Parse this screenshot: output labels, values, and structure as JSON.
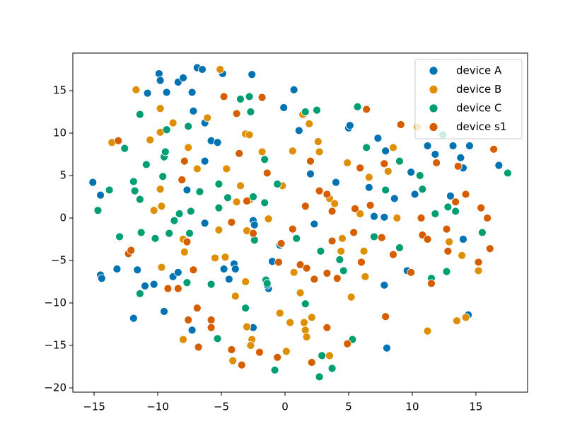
{
  "chart_data": {
    "type": "scatter",
    "xlim": [
      -16.67,
      19.06
    ],
    "ylim": [
      -20.5,
      19.42
    ],
    "xticks": [
      {
        "value": -15,
        "label": "−15"
      },
      {
        "value": -10,
        "label": "−10"
      },
      {
        "value": -5,
        "label": "−5"
      },
      0,
      5,
      10,
      15
    ],
    "yticks": [
      {
        "value": -20,
        "label": "−20"
      },
      {
        "value": -15,
        "label": "−15"
      },
      {
        "value": -10,
        "label": "−10"
      },
      {
        "value": -5,
        "label": "−5"
      },
      0,
      5,
      10,
      15
    ],
    "grid": false,
    "legend": "upper right",
    "series": [
      {
        "name": "device A",
        "color": "#0173b2",
        "x": [
          -15.1,
          -14.5,
          -14.5,
          -14.4,
          -13.2,
          -11.9,
          -11.6,
          -11,
          -10.3,
          -9.9,
          -9.8,
          -10.8,
          -9.3,
          -8.4,
          -8,
          -7.3,
          -6.9,
          -6.5,
          -7.2,
          -6.3,
          -5.8,
          -5.3,
          -6.3,
          -7.7,
          -6.3,
          -9.5,
          -8.8,
          -8.4,
          -7.3,
          -4.8,
          -4,
          -3.9,
          -4.4,
          -4.9,
          -2.6,
          -2.5,
          -2.4,
          -1.3,
          -1.4,
          -1,
          -2.5,
          -0.4,
          -0.1,
          0.7,
          1.1,
          2,
          2.3,
          4,
          5,
          5.1,
          6.6,
          7,
          7.3,
          7.9,
          7.8,
          7.8,
          8,
          8.6,
          9.9,
          10.2,
          9.6,
          11.2,
          11.8,
          13,
          13.2,
          13.8,
          14,
          14.5,
          14,
          14.4,
          16.8
        ],
        "y": [
          4.2,
          2.7,
          -6.7,
          -7.1,
          -6,
          -11.8,
          -6.1,
          -8,
          -7.8,
          17,
          16.2,
          14.7,
          14.8,
          16,
          16.5,
          14.8,
          17.7,
          17.5,
          12.6,
          11.2,
          9.1,
          8.9,
          6.7,
          3.3,
          -0.6,
          -11,
          -6.9,
          -6.4,
          -13.2,
          -6,
          -5.4,
          -6,
          -7.2,
          17,
          16.9,
          -0.3,
          -0.8,
          -8.3,
          -7.9,
          -5.1,
          -12.9,
          -3.2,
          13,
          15.1,
          10.3,
          5.2,
          -0.7,
          4.2,
          10.6,
          10.9,
          3.6,
          0.2,
          9.4,
          7.9,
          0.1,
          -7.9,
          -15.3,
          2.3,
          5.4,
          2.8,
          -6.2,
          8.5,
          7.5,
          2.6,
          8.5,
          7.1,
          5.9,
          8.5,
          -2.5,
          -11.4,
          6.2
        ]
      },
      {
        "name": "device B",
        "color": "#de8f05",
        "x": [
          -11.7,
          -13.6,
          -9.8,
          -9.8,
          -8.8,
          -10.6,
          -7.6,
          -6.1,
          -6.9,
          -9.8,
          -9.7,
          -10.3,
          -8,
          -7.9,
          -9.7,
          -8,
          -5.5,
          -4.7,
          -5.2,
          -4.6,
          -5.1,
          -3.1,
          -2.8,
          -1.8,
          -3.5,
          -3.8,
          -3,
          -2.8,
          -1.3,
          -3.1,
          -3.9,
          -3,
          -2.6,
          -2.7,
          -4.1,
          -0.2,
          0.6,
          -0.4,
          0.4,
          0.1,
          -0.6,
          0.7,
          1.2,
          1.5,
          1.6,
          1.7,
          2.1,
          1.4,
          1.9,
          2.6,
          2.7,
          3.5,
          3.9,
          4.5,
          4.4,
          4.9,
          5.2,
          3.5,
          5.9,
          6.2,
          6.3,
          6.6,
          8.1,
          8.5,
          8.8,
          10.4,
          11.2,
          12.9,
          13.9,
          13.5,
          14.2,
          15.2
        ],
        "y": [
          15.1,
          8.9,
          12.9,
          10.1,
          11.2,
          9.2,
          8.3,
          11.8,
          5.8,
          3.4,
          1.4,
          0.9,
          -2.5,
          -4,
          -5.8,
          -14.3,
          -4.7,
          -4.6,
          -1.4,
          5.8,
          17.5,
          9.9,
          9.8,
          7.8,
          3.8,
          1.9,
          -1.5,
          2.1,
          -0.1,
          -7.5,
          -9.2,
          -12.8,
          -14.3,
          -15,
          -16.8,
          3.8,
          7.9,
          -11.2,
          -12.3,
          -15.7,
          -16.4,
          -6.4,
          -8.8,
          -12.3,
          -13.2,
          -14,
          -11.7,
          12.2,
          11.1,
          9,
          7.8,
          2.3,
          1.7,
          -2.4,
          -3.9,
          6.5,
          -9.3,
          -16.2,
          0.5,
          -3.9,
          -6.9,
          4.8,
          5.5,
          8.3,
          0,
          10.7,
          -13.3,
          -2.8,
          -4.4,
          -12.1,
          -11.7,
          -6.2
        ]
      },
      {
        "name": "device C",
        "color": "#029e73",
        "x": [
          -14.7,
          -13.8,
          -12.6,
          -13,
          -11.9,
          -11.8,
          -11.4,
          -11.4,
          -11.3,
          -11.4,
          -10.9,
          -10.2,
          -9.5,
          -9.4,
          -9.6,
          -9.3,
          -9.1,
          -8.7,
          -8.3,
          -7.6,
          -7.4,
          -7.5,
          -7.7,
          -6.7,
          -5.8,
          -5.3,
          -5.2,
          -5.2,
          -4.5,
          -3.5,
          -2.8,
          -2.7,
          -2.5,
          -2.4,
          -1.6,
          -1.6,
          -3.1,
          -1.5,
          -1.4,
          -0.8,
          -0.6,
          0.9,
          1.6,
          1.6,
          2.5,
          2.7,
          2.9,
          3.7,
          2.8,
          4.3,
          4.6,
          5.3,
          5.7,
          6.4,
          7,
          7.9,
          9,
          9,
          10.6,
          10.8,
          11.5,
          11.8,
          12.4,
          12.8,
          12.7,
          13.4,
          15.5,
          17.5
        ],
        "y": [
          0.9,
          3.3,
          8.2,
          -2.2,
          4.3,
          3.2,
          2.2,
          12.2,
          -1.7,
          -8.9,
          6.3,
          -2.4,
          7.2,
          7.8,
          4.9,
          10.4,
          -1.8,
          -0.3,
          0.5,
          10.8,
          0.8,
          -1.8,
          -7.6,
          3.1,
          -7.8,
          -14.2,
          4,
          1.2,
          2.4,
          14,
          14.3,
          12.5,
          2.5,
          -2.6,
          1.8,
          6.9,
          -10.6,
          -7.3,
          -7.7,
          -17.9,
          4,
          -2.4,
          12.5,
          -10.1,
          12.7,
          -18.7,
          -16.2,
          -17.7,
          -3.9,
          -4.9,
          -6.2,
          -14.3,
          13.1,
          8.3,
          -2.2,
          3.3,
          6.7,
          -3.5,
          5,
          3.4,
          -7.1,
          0.5,
          9.8,
          1.3,
          -6.3,
          0.8,
          -1.7,
          5.3
        ]
      },
      {
        "name": "device s1",
        "color": "#d55e00",
        "x": [
          -13.1,
          -12.3,
          -12.1,
          -9.2,
          -8.4,
          -8.1,
          -7.9,
          -7.7,
          -7.6,
          -7.2,
          -6.9,
          -6.8,
          -5.8,
          -5.8,
          -4.8,
          -4.2,
          -3.8,
          -3.6,
          -3.4,
          -3,
          -4.2,
          -2.5,
          -1.8,
          -2,
          -1.4,
          -0.5,
          -0.3,
          0.6,
          -0.6,
          1.2,
          1.6,
          1.7,
          2,
          2.1,
          2.3,
          2.7,
          3.3,
          3.3,
          3.3,
          3.7,
          3.7,
          4.1,
          4.9,
          5.4,
          5.5,
          5.9,
          6,
          6.4,
          6.7,
          7.6,
          7.8,
          7.9,
          8.5,
          9.1,
          9.9,
          10.7,
          10.8,
          11.2,
          11.5,
          11.9,
          12.7,
          12.8,
          13.4,
          13.6,
          14.2,
          15.2,
          15.4,
          15.9,
          16.1,
          16.4
        ],
        "y": [
          9.1,
          -4.2,
          -3.8,
          -8.3,
          -8.3,
          4.5,
          6.7,
          -2.8,
          -12,
          -6.1,
          -10.6,
          -15.2,
          -12,
          -12.9,
          14.3,
          -0.5,
          12.3,
          7.6,
          -17.3,
          2,
          -15.5,
          -1.8,
          14.2,
          -15.8,
          5.3,
          -5.2,
          -3,
          -1.3,
          -16.4,
          -5.5,
          1.4,
          -5.9,
          6.7,
          -17,
          -7.2,
          3.2,
          2.8,
          -6.5,
          -12.9,
          -2.7,
          0.8,
          -7.1,
          -14.8,
          -1.7,
          1.1,
          5.9,
          -5.2,
          12.8,
          1.5,
          -2.3,
          6.4,
          -11.6,
          -4.3,
          11,
          -6.4,
          0,
          -2,
          -2.5,
          -7.7,
          6.5,
          -1.3,
          -3.9,
          1.9,
          6.1,
          2.8,
          -5.2,
          1.2,
          0,
          -3.6,
          8.1
        ]
      }
    ]
  }
}
